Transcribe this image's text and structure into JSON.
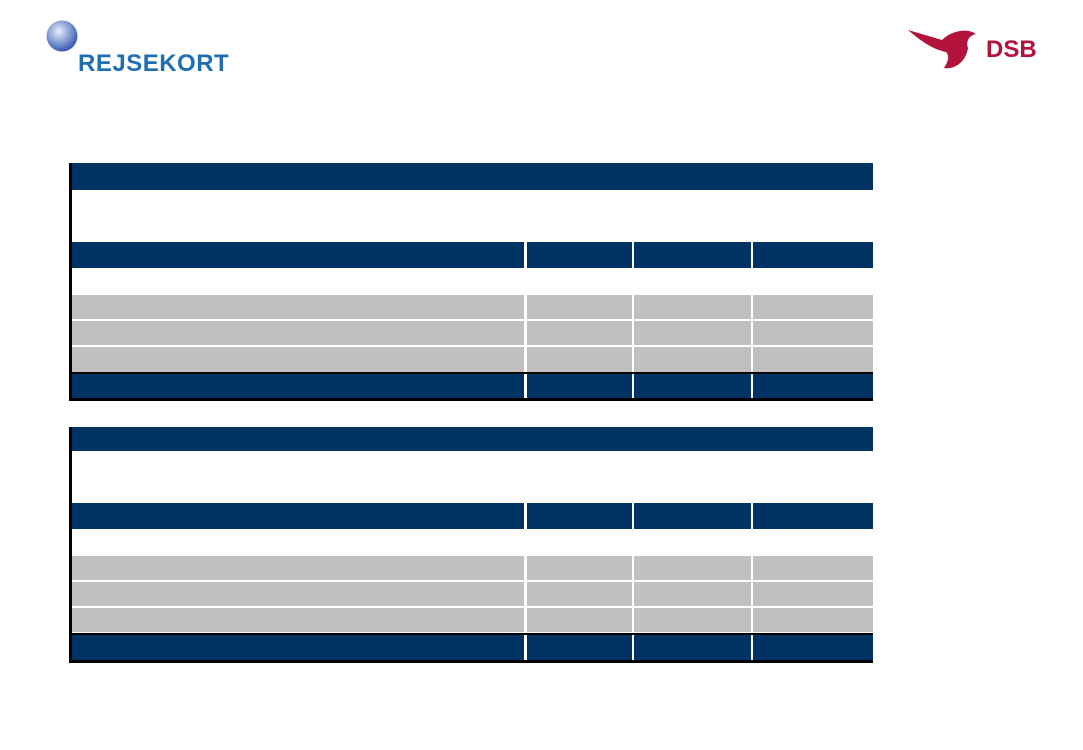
{
  "logos": {
    "rejsekort": {
      "text": "REJSEKORT",
      "color": "#1f6fb0"
    },
    "dsb": {
      "text": "DSB",
      "color": "#b3123a"
    }
  },
  "colors": {
    "navy": "#003263",
    "grey": "#c0c0c0"
  },
  "tables": [
    {
      "title": "",
      "subtitle": "",
      "header": [
        "",
        "",
        "",
        ""
      ],
      "section_label": "",
      "rows": [
        [
          "",
          "",
          "",
          ""
        ],
        [
          "",
          "",
          "",
          ""
        ],
        [
          "",
          "",
          "",
          ""
        ]
      ],
      "total": [
        "",
        "",
        "",
        ""
      ]
    },
    {
      "title": "",
      "subtitle": "",
      "header": [
        "",
        "",
        "",
        ""
      ],
      "section_label": "",
      "rows": [
        [
          "",
          "",
          "",
          ""
        ],
        [
          "",
          "",
          "",
          ""
        ],
        [
          "",
          "",
          "",
          ""
        ]
      ],
      "total": [
        "",
        "",
        "",
        ""
      ]
    }
  ]
}
